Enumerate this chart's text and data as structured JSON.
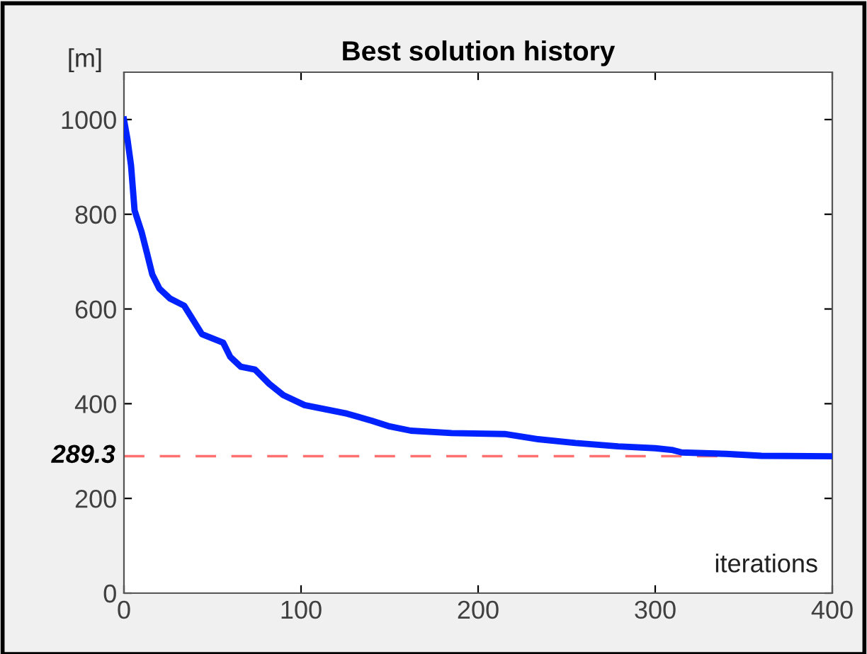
{
  "chart_data": {
    "type": "line",
    "title": "Best solution history",
    "ylabel": "[m]",
    "xlabel": "iterations",
    "x": [
      0,
      2,
      4,
      6,
      10,
      13,
      16,
      20,
      26,
      34,
      38,
      44,
      50,
      56,
      60,
      66,
      74,
      82,
      90,
      102,
      114,
      126,
      140,
      150,
      162,
      185,
      215,
      234,
      255,
      279,
      300,
      310,
      315,
      340,
      360,
      400
    ],
    "series": [
      {
        "color": "#0022ff",
        "values": [
          1000,
          958,
          903,
          808,
          762,
          718,
          673,
          643,
          622,
          607,
          583,
          547,
          538,
          529,
          499,
          478,
          472,
          442,
          418,
          397,
          388,
          379,
          364,
          352,
          343,
          338,
          336,
          325,
          317,
          310,
          306,
          302,
          297,
          294,
          290,
          289
        ]
      }
    ],
    "xlim": [
      0,
      400
    ],
    "ylim": [
      0,
      1100
    ],
    "xticks": [
      0,
      100,
      200,
      300,
      400
    ],
    "yticks": [
      0,
      200,
      400,
      600,
      800,
      1000
    ],
    "ref_lines": [
      {
        "axis": "y",
        "value": 289.3,
        "label": "289.3",
        "color": "#ff7070",
        "line_style": "dashed"
      }
    ],
    "grid": false,
    "legend": false,
    "marker": "none",
    "line_style": "solid"
  }
}
